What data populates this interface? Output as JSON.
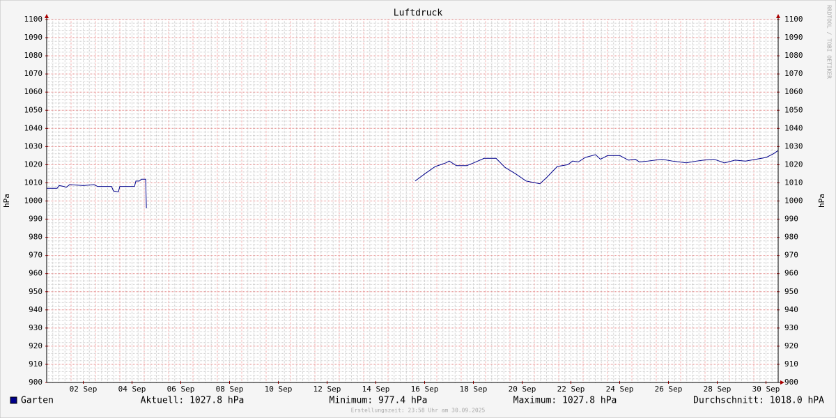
{
  "chart_data": {
    "type": "line",
    "title": "Luftdruck",
    "y_label": "hPa",
    "watermark": "RRDTOOL / TOBI OETIKER",
    "xlim": [
      0,
      30
    ],
    "xticks": [
      {
        "value": 1.5,
        "label": "02 Sep"
      },
      {
        "value": 3.5,
        "label": "04 Sep"
      },
      {
        "value": 5.5,
        "label": "06 Sep"
      },
      {
        "value": 7.5,
        "label": "08 Sep"
      },
      {
        "value": 9.5,
        "label": "10 Sep"
      },
      {
        "value": 11.5,
        "label": "12 Sep"
      },
      {
        "value": 13.5,
        "label": "14 Sep"
      },
      {
        "value": 15.5,
        "label": "16 Sep"
      },
      {
        "value": 17.5,
        "label": "18 Sep"
      },
      {
        "value": 19.5,
        "label": "20 Sep"
      },
      {
        "value": 21.5,
        "label": "22 Sep"
      },
      {
        "value": 23.5,
        "label": "24 Sep"
      },
      {
        "value": 25.5,
        "label": "26 Sep"
      },
      {
        "value": 27.5,
        "label": "28 Sep"
      },
      {
        "value": 29.5,
        "label": "30 Sep"
      }
    ],
    "ylim": [
      900,
      1100
    ],
    "yticks": [
      900,
      910,
      920,
      930,
      940,
      950,
      960,
      970,
      980,
      990,
      1000,
      1010,
      1020,
      1030,
      1040,
      1050,
      1060,
      1070,
      1080,
      1090,
      1100
    ],
    "grid": true,
    "x": [
      0,
      0.43,
      0.51,
      0.71,
      0.8,
      0.94,
      1.51,
      1.94,
      2.09,
      2.66,
      2.74,
      2.94,
      3.0,
      3.6,
      3.66,
      3.8,
      3.89,
      4.06,
      4.09,
      10,
      15.11,
      15.51,
      15.94,
      16.37,
      16.51,
      16.8,
      17.23,
      17.51,
      17.94,
      18.43,
      18.8,
      19.23,
      19.66,
      20.23,
      20.51,
      20.94,
      21.37,
      21.57,
      21.8,
      22.09,
      22.51,
      22.71,
      23.0,
      23.51,
      23.86,
      24.14,
      24.31,
      24.66,
      25.23,
      25.66,
      26.23,
      26.66,
      26.94,
      27.37,
      27.8,
      28.23,
      28.66,
      29.09,
      29.51,
      29.8,
      30
    ],
    "series": [
      {
        "name": "Garten",
        "color": "#00008b",
        "values": [
          1007,
          1007,
          1008.5,
          1008,
          1007.5,
          1009,
          1008.5,
          1009,
          1008,
          1008,
          1005.5,
          1005,
          1008,
          1008,
          1011,
          1011,
          1012,
          1012,
          996,
          null,
          1011,
          1015,
          1019,
          1021,
          1022,
          1019.5,
          1019.5,
          1021,
          1023.5,
          1023.5,
          1018.5,
          1015,
          1011,
          1009.5,
          1013,
          1019,
          1020,
          1022,
          1021.5,
          1024,
          1025.5,
          1023,
          1025,
          1025,
          1022.5,
          1023,
          1021.5,
          1022,
          1023,
          1022,
          1021,
          1022,
          1022.5,
          1023,
          1021,
          1022.5,
          1022,
          1023,
          1024,
          1026,
          1027.8
        ]
      }
    ],
    "legend_stats": [
      "Aktuell: 1027.8 hPa",
      "Minimum: 977.4 hPa",
      "Maximum: 1027.8 hPa",
      "Durchschnitt: 1018.0 hPA"
    ],
    "footer": "Erstellungszeit: 23:58 Uhr am 30.09.2025"
  }
}
